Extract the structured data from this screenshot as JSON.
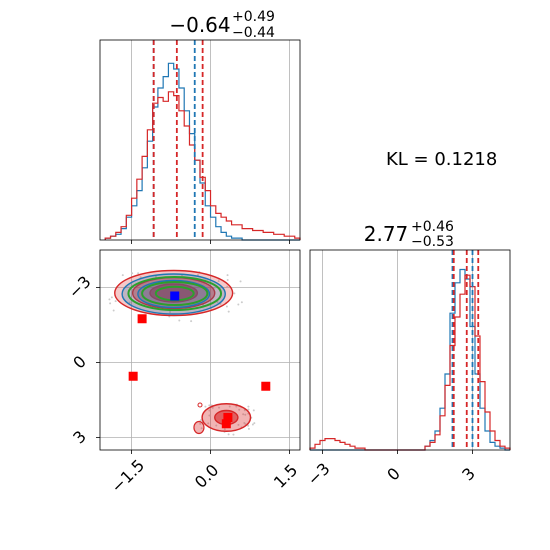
{
  "colors": {
    "blue": "#1f77b4",
    "red": "#d62728",
    "green": "#2ca02c",
    "marker_blue": "#0000ff",
    "marker_red": "#ff0000",
    "grid": "#b0b0b0"
  },
  "kl_text": "KL = 0.1218",
  "chart_data": [
    {
      "type": "histogram",
      "panel": "top-left",
      "parameter_index": 0,
      "title": {
        "median": "−0.64",
        "plus": "+0.49",
        "minus": "−0.44"
      },
      "xlim": [
        -2.1,
        1.7
      ],
      "xticks": [
        -1.5,
        0.0,
        1.5
      ],
      "vlines": [
        {
          "x": -1.08,
          "color": "blue",
          "dashed": true
        },
        {
          "x": -0.3,
          "color": "blue",
          "dashed": true
        },
        {
          "x": -1.08,
          "color": "red",
          "dashed": true
        },
        {
          "x": -0.64,
          "color": "red",
          "dashed": true
        },
        {
          "x": -0.15,
          "color": "red",
          "dashed": true
        }
      ],
      "series": [
        {
          "color": "blue",
          "bins": [
            -1.95,
            -1.85,
            -1.75,
            -1.65,
            -1.55,
            -1.45,
            -1.35,
            -1.25,
            -1.15,
            -1.05,
            -0.95,
            -0.85,
            -0.75,
            -0.65,
            -0.55,
            -0.45,
            -0.35,
            -0.25,
            -0.15,
            -0.05,
            0.05,
            0.15,
            0.25,
            0.35,
            0.45,
            0.55,
            0.65,
            0.75,
            0.85,
            0.95,
            1.05,
            1.15,
            1.25,
            1.35,
            1.45,
            1.55,
            1.65
          ],
          "counts": [
            0.01,
            0.02,
            0.03,
            0.06,
            0.12,
            0.18,
            0.26,
            0.38,
            0.52,
            0.7,
            0.8,
            0.86,
            0.93,
            0.9,
            0.8,
            0.68,
            0.56,
            0.42,
            0.3,
            0.18,
            0.12,
            0.07,
            0.04,
            0.02,
            0.01,
            0.01,
            0,
            0,
            0,
            0,
            0,
            0,
            0,
            0,
            0,
            0,
            0
          ]
        },
        {
          "color": "red",
          "bins": [
            -1.95,
            -1.85,
            -1.75,
            -1.65,
            -1.55,
            -1.45,
            -1.35,
            -1.25,
            -1.15,
            -1.05,
            -0.95,
            -0.85,
            -0.75,
            -0.65,
            -0.55,
            -0.45,
            -0.35,
            -0.25,
            -0.15,
            -0.05,
            0.05,
            0.15,
            0.25,
            0.35,
            0.45,
            0.55,
            0.65,
            0.75,
            0.85,
            0.95,
            1.05,
            1.15,
            1.25,
            1.35,
            1.45,
            1.55,
            1.65
          ],
          "counts": [
            0.01,
            0.02,
            0.04,
            0.07,
            0.13,
            0.22,
            0.32,
            0.44,
            0.58,
            0.72,
            0.75,
            0.73,
            0.78,
            0.76,
            0.68,
            0.6,
            0.5,
            0.42,
            0.33,
            0.26,
            0.18,
            0.14,
            0.12,
            0.1,
            0.08,
            0.08,
            0.06,
            0.06,
            0.05,
            0.05,
            0.04,
            0.04,
            0.03,
            0.03,
            0.02,
            0.02,
            0.01
          ]
        }
      ]
    },
    {
      "type": "histogram",
      "panel": "bottom-right",
      "parameter_index": 1,
      "title": {
        "median": "2.77",
        "plus": "+0.46",
        "minus": "−0.53"
      },
      "xlim": [
        -3.5,
        4.5
      ],
      "xticks": [
        -3,
        0,
        3
      ],
      "vlines": [
        {
          "x": 2.2,
          "color": "blue",
          "dashed": true
        },
        {
          "x": 3.0,
          "color": "blue",
          "dashed": true
        },
        {
          "x": 2.25,
          "color": "red",
          "dashed": true
        },
        {
          "x": 2.77,
          "color": "red",
          "dashed": true
        },
        {
          "x": 3.23,
          "color": "red",
          "dashed": true
        }
      ],
      "series": [
        {
          "color": "blue",
          "bins": [
            -3.4,
            -3.2,
            -3.0,
            -2.8,
            -2.6,
            -2.4,
            -2.2,
            -2.0,
            -1.8,
            -1.6,
            -1.4,
            -1.2,
            -1.0,
            -0.8,
            -0.6,
            -0.4,
            -0.2,
            0.0,
            0.2,
            0.4,
            0.6,
            0.8,
            1.0,
            1.2,
            1.4,
            1.6,
            1.8,
            2.0,
            2.2,
            2.4,
            2.6,
            2.8,
            3.0,
            3.2,
            3.4,
            3.6,
            3.8,
            4.0,
            4.2,
            4.4
          ],
          "counts": [
            0,
            0,
            0,
            0,
            0,
            0,
            0,
            0,
            0,
            0,
            0,
            0,
            0,
            0,
            0,
            0,
            0,
            0,
            0,
            0,
            0,
            0,
            0,
            0.02,
            0.05,
            0.1,
            0.22,
            0.4,
            0.72,
            0.88,
            0.95,
            0.9,
            0.65,
            0.4,
            0.22,
            0.1,
            0.04,
            0.02,
            0.01,
            0
          ]
        },
        {
          "color": "red",
          "bins": [
            -3.4,
            -3.2,
            -3.0,
            -2.8,
            -2.6,
            -2.4,
            -2.2,
            -2.0,
            -1.8,
            -1.6,
            -1.4,
            -1.2,
            -1.0,
            -0.8,
            -0.6,
            -0.4,
            -0.2,
            0.0,
            0.2,
            0.4,
            0.6,
            0.8,
            1.0,
            1.2,
            1.4,
            1.6,
            1.8,
            2.0,
            2.2,
            2.4,
            2.6,
            2.8,
            3.0,
            3.2,
            3.4,
            3.6,
            3.8,
            4.0,
            4.2,
            4.4
          ],
          "counts": [
            0.01,
            0.03,
            0.05,
            0.06,
            0.06,
            0.05,
            0.04,
            0.03,
            0.02,
            0.01,
            0.01,
            0,
            0,
            0,
            0,
            0,
            0,
            0,
            0,
            0,
            0,
            0,
            0,
            0.02,
            0.04,
            0.08,
            0.18,
            0.34,
            0.55,
            0.7,
            0.82,
            0.92,
            0.86,
            0.6,
            0.36,
            0.2,
            0.1,
            0.05,
            0.02,
            0.01
          ]
        }
      ]
    },
    {
      "type": "contour",
      "panel": "bottom-left",
      "xlim": [
        -2.1,
        1.7
      ],
      "ylim": [
        -3.5,
        4.5
      ],
      "xticks": [
        -1.5,
        0.0,
        1.5
      ],
      "yticks": [
        -3,
        0,
        3
      ],
      "x_tick_labels": [
        "−1.5",
        "0.0",
        "1.5"
      ],
      "y_tick_labels": [
        "3",
        "0",
        "−3"
      ],
      "red_filled_blobs": [
        {
          "cx": -0.7,
          "cy": 2.78,
          "rx": 1.12,
          "ry": 0.9
        },
        {
          "cx": -0.7,
          "cy": 2.78,
          "rx": 0.78,
          "ry": 0.62
        },
        {
          "cx": -0.7,
          "cy": 2.78,
          "rx": 0.45,
          "ry": 0.36
        },
        {
          "cx": 0.3,
          "cy": -2.2,
          "rx": 0.46,
          "ry": 0.55
        },
        {
          "cx": 0.3,
          "cy": -2.2,
          "rx": 0.22,
          "ry": 0.28
        }
      ],
      "blue_contours": [
        {
          "cx": -0.7,
          "cy": 2.74,
          "rx": 0.98,
          "ry": 0.8
        },
        {
          "cx": -0.7,
          "cy": 2.74,
          "rx": 0.68,
          "ry": 0.54
        }
      ],
      "green_contours": [
        {
          "cx": -0.68,
          "cy": 2.76,
          "rx": 0.88,
          "ry": 0.66
        },
        {
          "cx": -0.68,
          "cy": 2.76,
          "rx": 0.62,
          "ry": 0.46
        },
        {
          "cx": -0.68,
          "cy": 2.76,
          "rx": 0.36,
          "ry": 0.27
        }
      ],
      "markers": [
        {
          "x": -0.68,
          "y": 2.66,
          "color": "marker_blue"
        },
        {
          "x": -1.3,
          "y": 1.75,
          "color": "marker_red"
        },
        {
          "x": -1.47,
          "y": -0.55,
          "color": "marker_red"
        },
        {
          "x": 0.33,
          "y": -2.2,
          "color": "marker_red"
        },
        {
          "x": 0.3,
          "y": -2.45,
          "color": "marker_red"
        },
        {
          "x": 1.05,
          "y": -0.95,
          "color": "marker_red"
        }
      ]
    }
  ]
}
